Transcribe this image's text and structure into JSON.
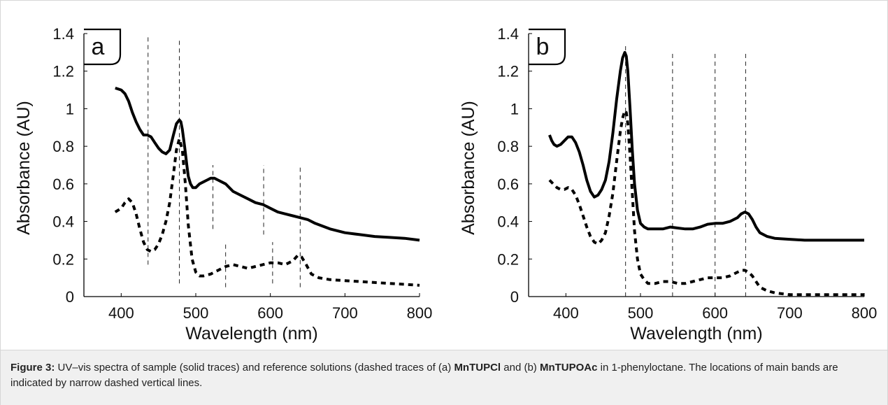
{
  "caption": {
    "label": "Figure 3:",
    "t1": " UV–vis spectra of sample (solid traces) and reference solutions (dashed traces of (a) ",
    "c1": "MnTUPCl",
    "t2": " and (b) ",
    "c2": "MnTUPOAc",
    "t3": " in 1-phenyloctane. The locations of main bands are indicated by narrow dashed vertical lines."
  },
  "chart_data": [
    {
      "type": "line",
      "panel_label": "a",
      "xlabel": "Wavelength (nm)",
      "ylabel": "Absorbance (AU)",
      "xlim": [
        350,
        800
      ],
      "ylim": [
        0,
        1.4
      ],
      "xticks": [
        400,
        500,
        600,
        700,
        800
      ],
      "yticks": [
        0,
        0.2,
        0.4,
        0.6,
        0.8,
        1,
        1.2,
        1.4
      ],
      "grid": false,
      "series": [
        {
          "style": "solid",
          "x": [
            392,
            400,
            405,
            410,
            415,
            420,
            425,
            430,
            435,
            440,
            445,
            450,
            455,
            460,
            465,
            470,
            474,
            478,
            480,
            482,
            485,
            488,
            490,
            493,
            496,
            500,
            505,
            510,
            515,
            520,
            525,
            530,
            535,
            540,
            550,
            560,
            570,
            580,
            590,
            600,
            610,
            620,
            630,
            640,
            650,
            660,
            680,
            700,
            720,
            740,
            760,
            780,
            800
          ],
          "y": [
            1.11,
            1.1,
            1.08,
            1.04,
            0.98,
            0.93,
            0.89,
            0.86,
            0.86,
            0.85,
            0.82,
            0.79,
            0.77,
            0.76,
            0.78,
            0.86,
            0.92,
            0.94,
            0.93,
            0.89,
            0.8,
            0.7,
            0.64,
            0.6,
            0.58,
            0.58,
            0.6,
            0.61,
            0.62,
            0.63,
            0.63,
            0.62,
            0.61,
            0.6,
            0.56,
            0.54,
            0.52,
            0.5,
            0.49,
            0.47,
            0.45,
            0.44,
            0.43,
            0.42,
            0.41,
            0.39,
            0.36,
            0.34,
            0.33,
            0.32,
            0.315,
            0.31,
            0.3
          ]
        },
        {
          "style": "dashed",
          "x": [
            392,
            400,
            405,
            410,
            415,
            420,
            425,
            430,
            435,
            440,
            445,
            450,
            455,
            460,
            465,
            470,
            474,
            478,
            482,
            486,
            490,
            495,
            500,
            505,
            510,
            520,
            530,
            540,
            550,
            560,
            570,
            580,
            590,
            600,
            610,
            620,
            630,
            637,
            642,
            648,
            655,
            665,
            680,
            700,
            720,
            740,
            760,
            780,
            800
          ],
          "y": [
            0.45,
            0.47,
            0.5,
            0.52,
            0.5,
            0.44,
            0.36,
            0.29,
            0.25,
            0.24,
            0.25,
            0.28,
            0.33,
            0.4,
            0.5,
            0.65,
            0.78,
            0.84,
            0.78,
            0.6,
            0.38,
            0.2,
            0.13,
            0.11,
            0.11,
            0.12,
            0.14,
            0.16,
            0.17,
            0.16,
            0.15,
            0.16,
            0.17,
            0.18,
            0.18,
            0.17,
            0.19,
            0.22,
            0.21,
            0.17,
            0.12,
            0.1,
            0.09,
            0.085,
            0.08,
            0.075,
            0.07,
            0.065,
            0.06
          ]
        }
      ],
      "band_lines": [
        {
          "x": 436,
          "y_from": 0.17,
          "y_to": 1.38
        },
        {
          "x": 478,
          "y_from": 0.07,
          "y_to": 1.38
        },
        {
          "x": 523,
          "y_from": 0.36,
          "y_to": 0.7
        },
        {
          "x": 540,
          "y_from": 0.05,
          "y_to": 0.28
        },
        {
          "x": 591,
          "y_from": 0.33,
          "y_to": 0.7
        },
        {
          "x": 603,
          "y_from": 0.07,
          "y_to": 0.29
        },
        {
          "x": 640,
          "y_from": 0.05,
          "y_to": 0.7
        }
      ]
    },
    {
      "type": "line",
      "panel_label": "b",
      "xlabel": "Wavelength (nm)",
      "ylabel": "Absorbance (AU)",
      "xlim": [
        350,
        800
      ],
      "ylim": [
        0,
        1.4
      ],
      "xticks": [
        400,
        500,
        600,
        700,
        800
      ],
      "yticks": [
        0,
        0.2,
        0.4,
        0.6,
        0.8,
        1,
        1.2,
        1.4
      ],
      "grid": false,
      "series": [
        {
          "style": "solid",
          "x": [
            378,
            381,
            384,
            388,
            393,
            398,
            403,
            408,
            413,
            418,
            423,
            428,
            433,
            438,
            443,
            448,
            453,
            458,
            463,
            468,
            473,
            476,
            479,
            481,
            483,
            486,
            489,
            492,
            496,
            500,
            505,
            510,
            520,
            530,
            540,
            550,
            560,
            570,
            580,
            590,
            600,
            610,
            620,
            630,
            635,
            640,
            645,
            650,
            655,
            660,
            670,
            680,
            700,
            720,
            740,
            760,
            780,
            800
          ],
          "y": [
            0.86,
            0.83,
            0.81,
            0.8,
            0.81,
            0.83,
            0.85,
            0.85,
            0.82,
            0.77,
            0.7,
            0.62,
            0.56,
            0.53,
            0.54,
            0.57,
            0.62,
            0.72,
            0.87,
            1.05,
            1.2,
            1.27,
            1.3,
            1.28,
            1.2,
            1.0,
            0.78,
            0.6,
            0.46,
            0.39,
            0.37,
            0.36,
            0.36,
            0.36,
            0.37,
            0.365,
            0.36,
            0.36,
            0.37,
            0.385,
            0.39,
            0.39,
            0.4,
            0.42,
            0.44,
            0.45,
            0.44,
            0.41,
            0.37,
            0.34,
            0.32,
            0.31,
            0.305,
            0.3,
            0.3,
            0.3,
            0.3,
            0.3
          ]
        },
        {
          "style": "dashed",
          "x": [
            378,
            383,
            388,
            393,
            398,
            403,
            408,
            413,
            418,
            423,
            428,
            433,
            438,
            443,
            448,
            453,
            458,
            463,
            468,
            473,
            476,
            479,
            481,
            483,
            486,
            489,
            492,
            496,
            500,
            505,
            510,
            520,
            530,
            540,
            550,
            560,
            570,
            580,
            590,
            600,
            610,
            620,
            630,
            635,
            640,
            645,
            650,
            655,
            660,
            670,
            680,
            690,
            700,
            720,
            740,
            760,
            780,
            800
          ],
          "y": [
            0.62,
            0.6,
            0.58,
            0.57,
            0.57,
            0.58,
            0.57,
            0.54,
            0.49,
            0.43,
            0.37,
            0.32,
            0.29,
            0.28,
            0.3,
            0.34,
            0.43,
            0.55,
            0.72,
            0.88,
            0.95,
            0.99,
            0.98,
            0.92,
            0.75,
            0.55,
            0.35,
            0.2,
            0.12,
            0.09,
            0.07,
            0.07,
            0.08,
            0.08,
            0.07,
            0.07,
            0.08,
            0.09,
            0.1,
            0.1,
            0.1,
            0.11,
            0.13,
            0.14,
            0.14,
            0.13,
            0.11,
            0.08,
            0.05,
            0.03,
            0.02,
            0.015,
            0.01,
            0.01,
            0.01,
            0.01,
            0.01,
            0.01
          ]
        }
      ],
      "band_lines": [
        {
          "x": 480,
          "y_from": 0.0,
          "y_to": 1.34
        },
        {
          "x": 543,
          "y_from": 0.0,
          "y_to": 1.3
        },
        {
          "x": 600,
          "y_from": 0.0,
          "y_to": 1.3
        },
        {
          "x": 641,
          "y_from": 0.0,
          "y_to": 1.3
        }
      ]
    }
  ]
}
